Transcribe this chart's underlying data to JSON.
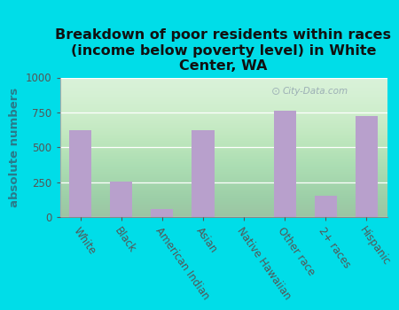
{
  "categories": [
    "White",
    "Black",
    "American Indian",
    "Asian",
    "Native Hawaiian",
    "Other race",
    "2+ races",
    "Hispanic"
  ],
  "values": [
    625,
    255,
    60,
    625,
    0,
    760,
    155,
    725
  ],
  "bar_color": "#b8a0cc",
  "background_outer": "#00dde8",
  "background_plot_top": "#f0faf8",
  "background_plot_bottom": "#d0efd0",
  "title": "Breakdown of poor residents within races\n(income below poverty level) in White\nCenter, WA",
  "ylabel": "absolute numbers",
  "ylim": [
    0,
    1000
  ],
  "yticks": [
    0,
    250,
    500,
    750,
    1000
  ],
  "watermark": "City-Data.com",
  "title_fontsize": 11.5,
  "ylabel_fontsize": 9.5,
  "tick_fontsize": 8.5,
  "ylabel_color": "#2a7a8a"
}
